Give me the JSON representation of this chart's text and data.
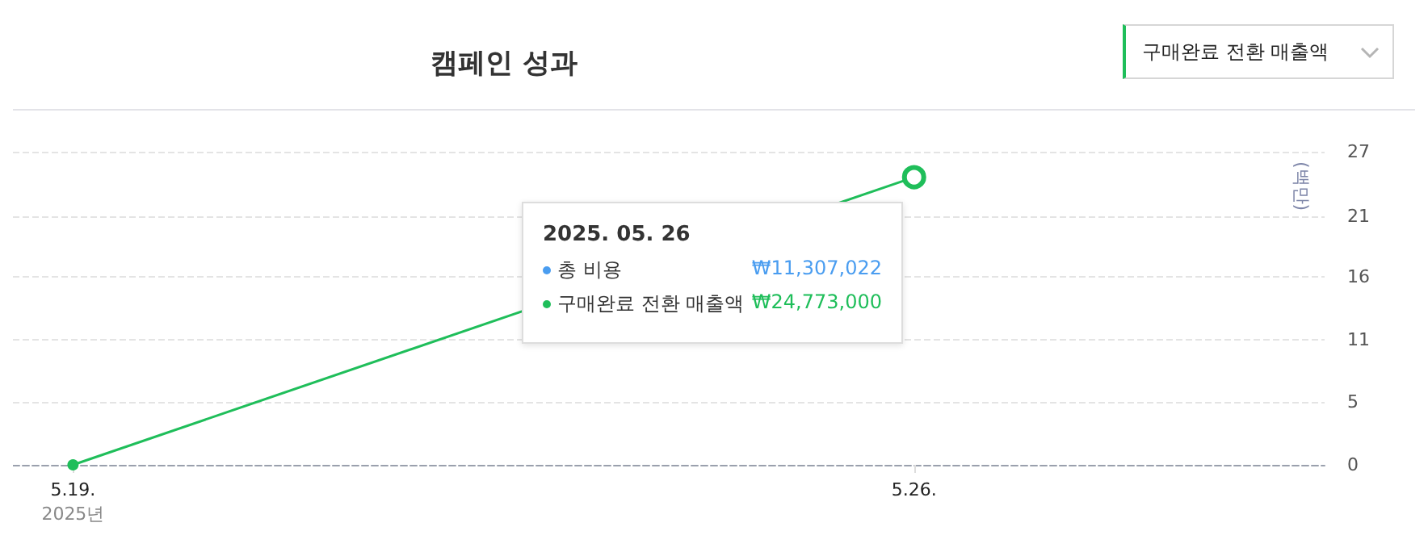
{
  "chart_data": {
    "type": "line",
    "title": "캠페인 성과",
    "ylabel": "(백만)",
    "x": [
      "2025-05-19",
      "2025-05-26"
    ],
    "xlim": [
      "2025-05-18T12:00",
      "2025-05-29T10:00"
    ],
    "xticks": [
      {
        "value": "2025-05-19",
        "label": "5.19.\n2025년"
      },
      {
        "value": "2025-05-26",
        "label": "5.26."
      }
    ],
    "series": [
      {
        "name": "구매완료 전환 매출액",
        "color": "#1fbe5a",
        "values": [
          0,
          24.8
        ]
      }
    ],
    "ylim": [
      0,
      27
    ],
    "yticks": [
      0,
      {
        "value": 5.4,
        "label": "5"
      },
      {
        "value": 10.8,
        "label": "11"
      },
      {
        "value": 16.2,
        "label": "16"
      },
      {
        "value": 21.4,
        "label": "21"
      },
      27
    ],
    "grid": "y",
    "marker": "circle",
    "line_style": "solid",
    "annotations": [
      "구매완료 전환 매출액",
      "2025. 05. 26",
      "총 비용",
      "₩11,307,022",
      "₩24,773,000"
    ]
  }
}
